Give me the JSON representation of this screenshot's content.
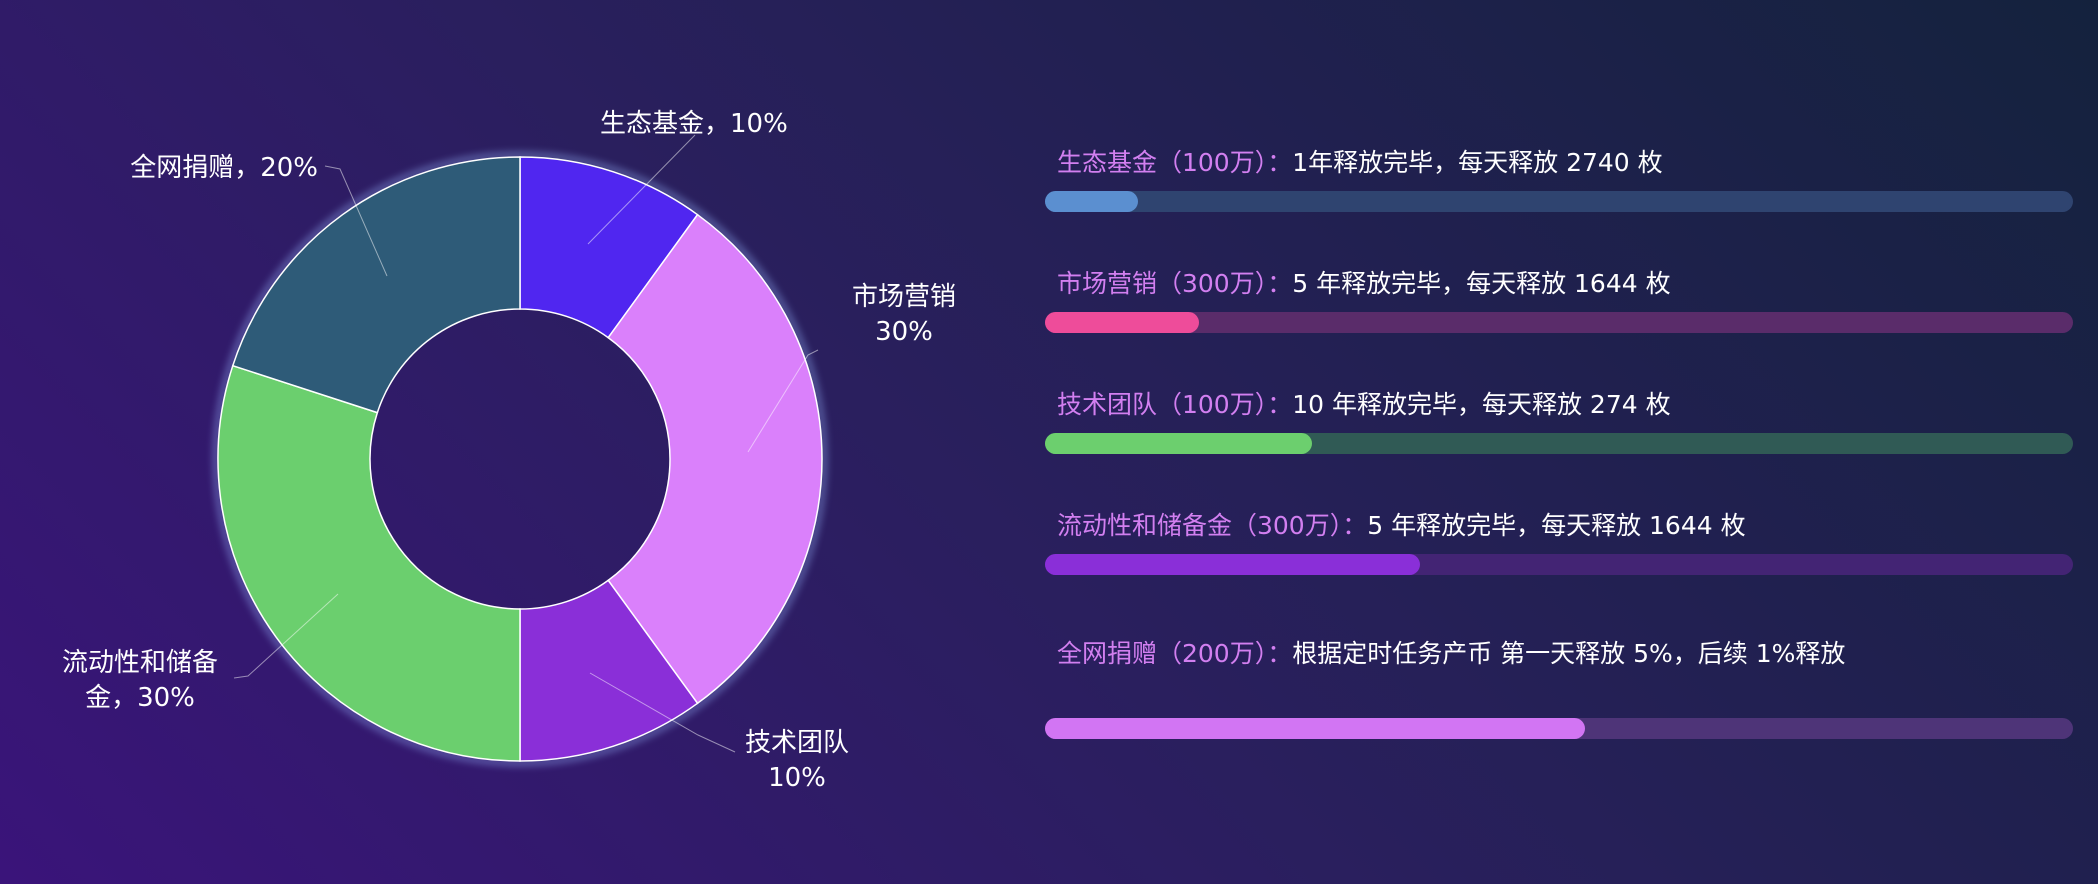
{
  "chart_data": [
    {
      "type": "pie",
      "style": "donut",
      "slices": [
        {
          "name": "生态基金",
          "value": 10,
          "color": "#5026f0",
          "label_lines": [
            "生态基金，10%"
          ]
        },
        {
          "name": "市场营销",
          "value": 30,
          "color": "#da80fb",
          "label_lines": [
            "市场营销",
            "30%"
          ]
        },
        {
          "name": "技术团队",
          "value": 10,
          "color": "#8a2fd8",
          "label_lines": [
            "技术团队",
            "10%"
          ]
        },
        {
          "name": "流动性和储备金",
          "value": 30,
          "color": "#6bcf6e",
          "label_lines": [
            "流动性和储备",
            "金，30%"
          ]
        },
        {
          "name": "全网捐赠",
          "value": 20,
          "color": "#2e5b78",
          "label_lines": [
            "全网捐赠，20%"
          ]
        }
      ]
    },
    {
      "type": "bar",
      "orientation": "horizontal",
      "xlim": [
        0,
        100
      ],
      "rows": [
        {
          "name": "生态基金（100万）：",
          "desc": "1年释放完毕，每天释放 2740 枚",
          "value": 9,
          "color": "#5b8fd0",
          "track_color": "#2f4470"
        },
        {
          "name": "市场营销（300万）：",
          "desc": "5 年释放完毕，每天释放 1644 枚",
          "value": 15,
          "color": "#ee4c9a",
          "track_color": "#5a2c6a"
        },
        {
          "name": "技术团队（100万）：",
          "desc": "10 年释放完毕，每天释放 274 枚",
          "value": 26,
          "color": "#6ccf6e",
          "track_color": "#305a55"
        },
        {
          "name": "流动性和储备金（300万）：",
          "desc": "5 年释放完毕，每天释放 1644 枚",
          "value": 36.5,
          "color": "#8a2fd8",
          "track_color": "#432474"
        },
        {
          "name": "全网捐赠（200万）：",
          "desc": "根据定时任务产币 第一天释放 5%，后续 1%释放",
          "value": 52.5,
          "color": "#d275f3",
          "track_color": "#4e3478"
        }
      ]
    }
  ]
}
